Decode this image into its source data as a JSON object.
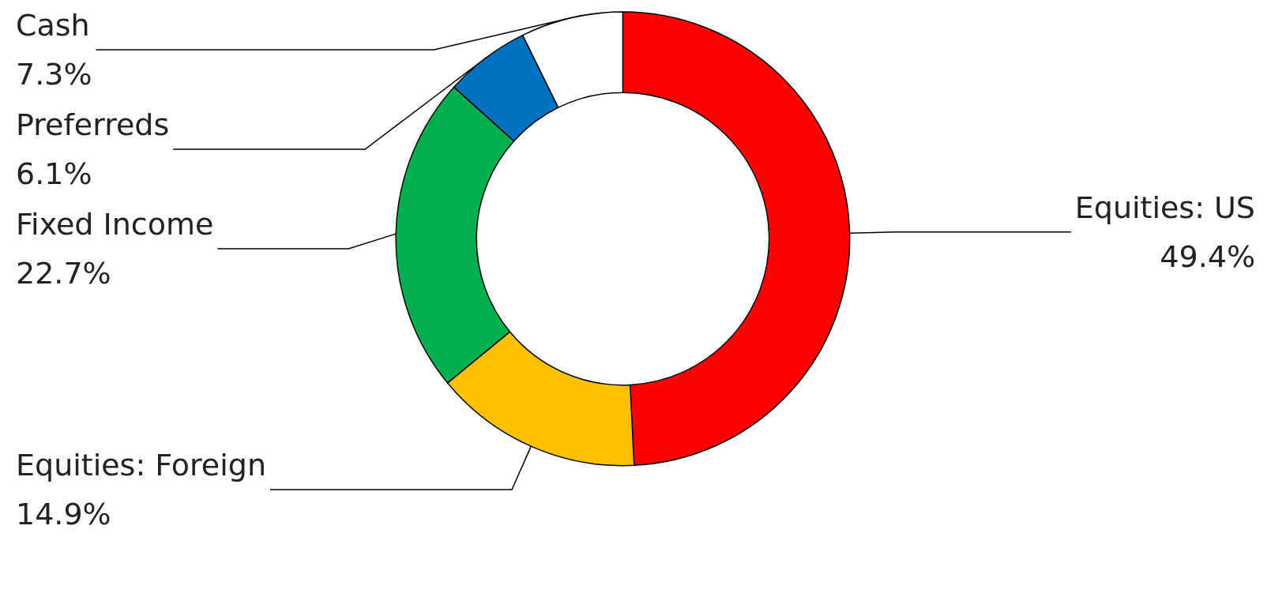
{
  "chart_data": {
    "type": "donut",
    "categories": [
      "Equities: US",
      "Equities: Foreign",
      "Fixed Income",
      "Preferreds",
      "Cash"
    ],
    "values": [
      49.4,
      14.9,
      22.7,
      6.1,
      7.3
    ],
    "value_labels": [
      "49.4%",
      "14.9%",
      "22.7%",
      "6.1%",
      "7.3%"
    ],
    "colors": [
      "#ff0000",
      "#ffc000",
      "#00b050",
      "#0070c0",
      "#ffffff"
    ],
    "legend": false
  }
}
